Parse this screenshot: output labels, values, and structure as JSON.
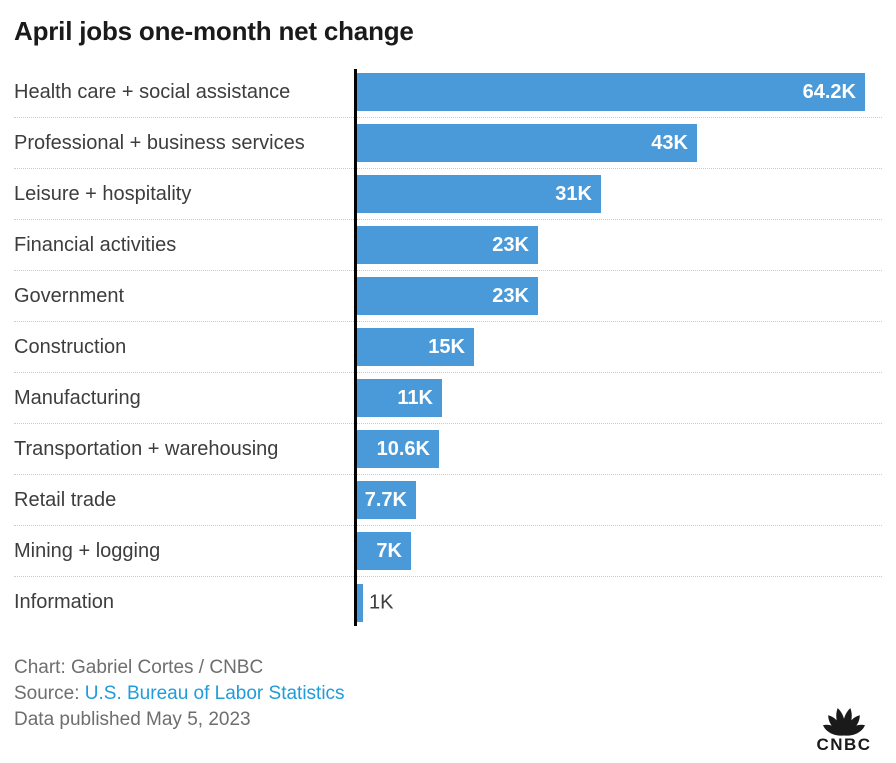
{
  "title": "April jobs one-month net change",
  "chart_data": {
    "type": "bar",
    "orientation": "horizontal",
    "categories": [
      "Health care + social assistance",
      "Professional + business services",
      "Leisure + hospitality",
      "Financial activities",
      "Government",
      "Construction",
      "Manufacturing",
      "Transportation + warehousing",
      "Retail trade",
      "Mining + logging",
      "Information"
    ],
    "values": [
      64200,
      43000,
      31000,
      23000,
      23000,
      15000,
      11000,
      10600,
      7700,
      7000,
      1000
    ],
    "value_labels": [
      "64.2K",
      "43K",
      "31K",
      "23K",
      "23K",
      "15K",
      "11K",
      "10.6K",
      "7.7K",
      "7K",
      "1K"
    ],
    "unit": "jobs",
    "xlim": [
      0,
      64200
    ],
    "grid": "dotted row separators",
    "legend": "none",
    "value_label_position": "inside bar end, outside when bar too small"
  },
  "colors": {
    "bar": "#4a99d8",
    "axis": "#000000",
    "title": "#1a1a1a",
    "category_label": "#3d3d3d",
    "value_label_inside": "#ffffff",
    "value_label_outside": "#3d3d3d",
    "separator": "#cbcbcb",
    "footer_text": "#6e6e6e",
    "link": "#1f9cd9",
    "logo": "#1a1a1a"
  },
  "footer": {
    "chart_credit": "Chart: Gabriel Cortes / CNBC",
    "source_prefix": "Source: ",
    "source_link": "U.S. Bureau of Labor Statistics",
    "data_published": "Data published May 5, 2023"
  },
  "logo_text": "CNBC"
}
